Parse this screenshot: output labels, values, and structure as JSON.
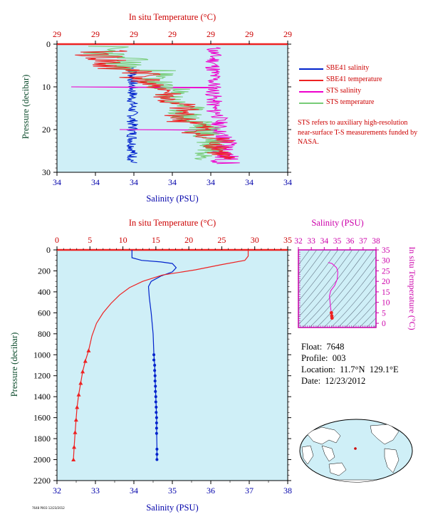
{
  "colors": {
    "salinity": "#0022cc",
    "temperature": "#ee2222",
    "sts_salinity": "#ee00cc",
    "sts_temperature": "#77cc77",
    "plot_bg": "#cfeff7",
    "top_axis_text": "#cc0000",
    "left_axis_text": "#0a4a2a",
    "bottom_axis_text": "#0000aa",
    "ts_axis": "#cc00aa"
  },
  "info": {
    "float": "Float:  7648",
    "profile": "Profile:  003",
    "location": "Location:  11.7°N  129.1°E",
    "date": "Date:  12/23/2012"
  },
  "legend": {
    "items": [
      {
        "label": "SBE41 salinity",
        "color": "#0022cc"
      },
      {
        "label": "SBE41 temperature",
        "color": "#ee2222"
      },
      {
        "label": "STS salinity",
        "color": "#ee00cc"
      },
      {
        "label": "STS temperature",
        "color": "#77cc77"
      }
    ],
    "note": "STS refers to auxiliary high-resolution near-surface T-S measurements funded by NASA."
  },
  "footer_text": "7648 P003 12/23/2012",
  "chart_data": [
    {
      "type": "line",
      "title": "",
      "top_axis_label": "In situ Temperature (°C)",
      "top_ticks": [
        "29",
        "29",
        "29",
        "29",
        "29",
        "29",
        "29"
      ],
      "bottom_axis_label": "Salinity (PSU)",
      "bottom_ticks": [
        "34",
        "34",
        "34",
        "34",
        "34",
        "34",
        "34"
      ],
      "ylabel": "Pressure (decibar)",
      "yticks": [
        "0",
        "10",
        "20",
        "30"
      ],
      "ylim": [
        30,
        0
      ],
      "series": [
        {
          "name": "SBE41 salinity",
          "x": [
            34.12,
            34.12,
            34.12,
            34.12,
            34.12,
            34.12
          ],
          "y": [
            6,
            10,
            15,
            20,
            25,
            28
          ]
        },
        {
          "name": "SBE41 temperature",
          "x": [
            28.98,
            28.96,
            28.96,
            28.97,
            28.98,
            28.97,
            28.98
          ],
          "y": [
            2,
            4,
            8,
            12,
            16,
            20,
            24
          ]
        },
        {
          "name": "STS salinity",
          "x": [
            34.12,
            34.12,
            34.12,
            34.12,
            34.12,
            34.12
          ],
          "y": [
            1,
            5,
            10,
            15,
            20,
            27
          ]
        },
        {
          "name": "STS temperature",
          "x": [
            28.97,
            28.96,
            28.96,
            28.97,
            28.97,
            28.98,
            28.98
          ],
          "y": [
            1,
            4,
            8,
            12,
            16,
            20,
            25
          ]
        }
      ]
    },
    {
      "type": "line",
      "title": "",
      "top_axis_label": "In situ Temperature (°C)",
      "top_ticks": [
        "0",
        "5",
        "10",
        "15",
        "20",
        "25",
        "30",
        "35"
      ],
      "xlim_temperature": [
        0,
        35
      ],
      "bottom_axis_label": "Salinity (PSU)",
      "bottom_ticks": [
        "32",
        "33",
        "34",
        "35",
        "36",
        "37",
        "38"
      ],
      "xlim_salinity": [
        32,
        38
      ],
      "ylabel": "Pressure (decibar)",
      "yticks": [
        "0",
        "200",
        "400",
        "600",
        "800",
        "1000",
        "1200",
        "1400",
        "1600",
        "1800",
        "2000",
        "2200"
      ],
      "ylim": [
        2200,
        0
      ],
      "series": [
        {
          "name": "SBE41 salinity",
          "x": [
            33.95,
            33.95,
            34.2,
            34.7,
            35.0,
            35.1,
            35.0,
            34.7,
            34.45,
            34.38,
            34.4,
            34.45,
            34.5,
            34.52,
            34.54,
            34.55,
            34.56,
            34.57,
            34.58,
            34.59,
            34.59,
            34.6,
            34.6
          ],
          "y": [
            0,
            75,
            100,
            115,
            130,
            170,
            210,
            250,
            300,
            350,
            450,
            600,
            800,
            1000,
            1100,
            1200,
            1300,
            1400,
            1500,
            1600,
            1700,
            1900,
            2000
          ]
        },
        {
          "name": "SBE41 temperature",
          "x": [
            29.0,
            29.0,
            28.5,
            25,
            21,
            16,
            13,
            11,
            9.5,
            8.2,
            7.0,
            6.0,
            5.3,
            4.8,
            4.3,
            3.9,
            3.6,
            3.3,
            3.05,
            2.9,
            2.75,
            2.6,
            2.5
          ],
          "y": [
            0,
            60,
            100,
            140,
            190,
            240,
            300,
            360,
            430,
            510,
            600,
            700,
            820,
            960,
            1060,
            1160,
            1270,
            1380,
            1500,
            1620,
            1740,
            1880,
            2000
          ]
        }
      ]
    },
    {
      "type": "scatter",
      "title": "",
      "top_axis_label": "Salinity (PSU)",
      "top_ticks": [
        "32",
        "33",
        "34",
        "35",
        "36",
        "37",
        "38"
      ],
      "xlim": [
        32,
        38
      ],
      "right_axis_label": "In situ Temperature (°C)",
      "right_ticks": [
        "0",
        "5",
        "10",
        "15",
        "20",
        "25",
        "30",
        "35"
      ],
      "ylim": [
        -2,
        35
      ],
      "series": [
        {
          "name": "T-S profile",
          "x": [
            34.6,
            34.58,
            34.55,
            34.5,
            34.45,
            34.4,
            34.5,
            34.8,
            35.0,
            35.05,
            34.95,
            34.6,
            34.3
          ],
          "y": [
            2.5,
            3.5,
            5.0,
            7.0,
            10.0,
            13.0,
            15.5,
            18.0,
            21.0,
            24.5,
            26.5,
            28.5,
            29.0
          ]
        }
      ]
    }
  ]
}
